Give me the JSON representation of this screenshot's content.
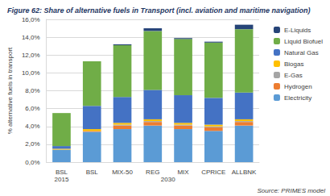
{
  "chart_data": {
    "type": "bar",
    "title": "Figure 62: Share of alternative fuels in Transport (incl. aviation and maritime navigation)",
    "source": "Source: PRIMES model",
    "ylabel": "% alternative fuels in transport",
    "categories": [
      "BSL",
      "BSL",
      "MIX-50",
      "REG",
      "MIX",
      "CPRICE",
      "ALLBNK"
    ],
    "x_groups": [
      {
        "label": "2015",
        "span": 1
      },
      {
        "label": "2030",
        "span": 6
      }
    ],
    "stacked": true,
    "grid": true,
    "legend": "right",
    "ylim": [
      0,
      16
    ],
    "yticks": [
      {
        "value": 0,
        "label": "0,0%"
      },
      {
        "value": 2,
        "label": "2,0%"
      },
      {
        "value": 4,
        "label": "4,0%"
      },
      {
        "value": 6,
        "label": "6,0%"
      },
      {
        "value": 8,
        "label": "8,0%"
      },
      {
        "value": 10,
        "label": "10,0%"
      },
      {
        "value": 12,
        "label": "12,0%"
      },
      {
        "value": 14,
        "label": "14,0%"
      },
      {
        "value": 16,
        "label": "16,0%"
      }
    ],
    "series": [
      {
        "name": "Electricity",
        "color": "#5b9bd5",
        "values": [
          1.4,
          3.4,
          3.7,
          4.1,
          3.7,
          3.5,
          4.1
        ]
      },
      {
        "name": "Hydrogen",
        "color": "#ed7d31",
        "values": [
          0,
          0.1,
          0.4,
          0.4,
          0.4,
          0.4,
          0.4
        ]
      },
      {
        "name": "E-Gas",
        "color": "#a5a5a5",
        "values": [
          0,
          0,
          0.1,
          0.1,
          0.1,
          0.1,
          0.1
        ]
      },
      {
        "name": "Biogas",
        "color": "#ffc000",
        "values": [
          0.1,
          0.2,
          0.2,
          0.2,
          0.2,
          0.2,
          0.2
        ]
      },
      {
        "name": "Natural Gas",
        "color": "#4472c4",
        "values": [
          0.3,
          2.6,
          2.9,
          3.3,
          3.1,
          3.0,
          3.0
        ]
      },
      {
        "name": "Liquid Biofuel",
        "color": "#70ad47",
        "values": [
          3.7,
          5.0,
          5.8,
          6.6,
          6.3,
          6.2,
          7.1
        ]
      },
      {
        "name": "E-Liquids",
        "color": "#264478",
        "values": [
          0,
          0,
          0.1,
          0.3,
          0.1,
          0.1,
          0.5
        ]
      }
    ]
  }
}
